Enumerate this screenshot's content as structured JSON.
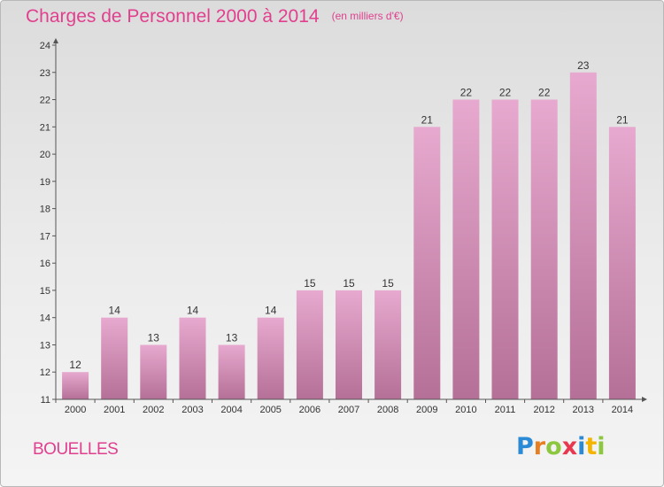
{
  "title": {
    "main": "Charges de Personnel 2000 à 2014",
    "unit": "(en milliers d'€)"
  },
  "commune": "BOUELLES",
  "brand": {
    "letters": [
      "P",
      "r",
      "o",
      "x",
      "i",
      "t",
      "i"
    ],
    "letter_colors": [
      "#2a8ad6",
      "#e67e22",
      "#8dc63f",
      "#e8384f",
      "#2a8ad6",
      "#f5b400",
      "#8dc63f"
    ]
  },
  "colors": {
    "title": "#e0408e",
    "bar_top": "#e7a9cf",
    "bar_bottom": "#b57097"
  },
  "chart_data": {
    "type": "bar",
    "categories": [
      "2000",
      "2001",
      "2002",
      "2003",
      "2004",
      "2005",
      "2006",
      "2007",
      "2008",
      "2009",
      "2010",
      "2011",
      "2012",
      "2013",
      "2014"
    ],
    "values": [
      12,
      14,
      13,
      14,
      13,
      14,
      15,
      15,
      15,
      21,
      22,
      22,
      22,
      23,
      21
    ],
    "data_labels": [
      "12",
      "14",
      "13",
      "14",
      "13",
      "14",
      "15",
      "15",
      "15",
      "21",
      "22",
      "22",
      "22",
      "23",
      "21"
    ],
    "y_ticks": [
      11,
      12,
      13,
      14,
      15,
      16,
      17,
      18,
      19,
      20,
      21,
      22,
      23,
      24
    ],
    "ylim": [
      11,
      24
    ],
    "grid": false
  }
}
